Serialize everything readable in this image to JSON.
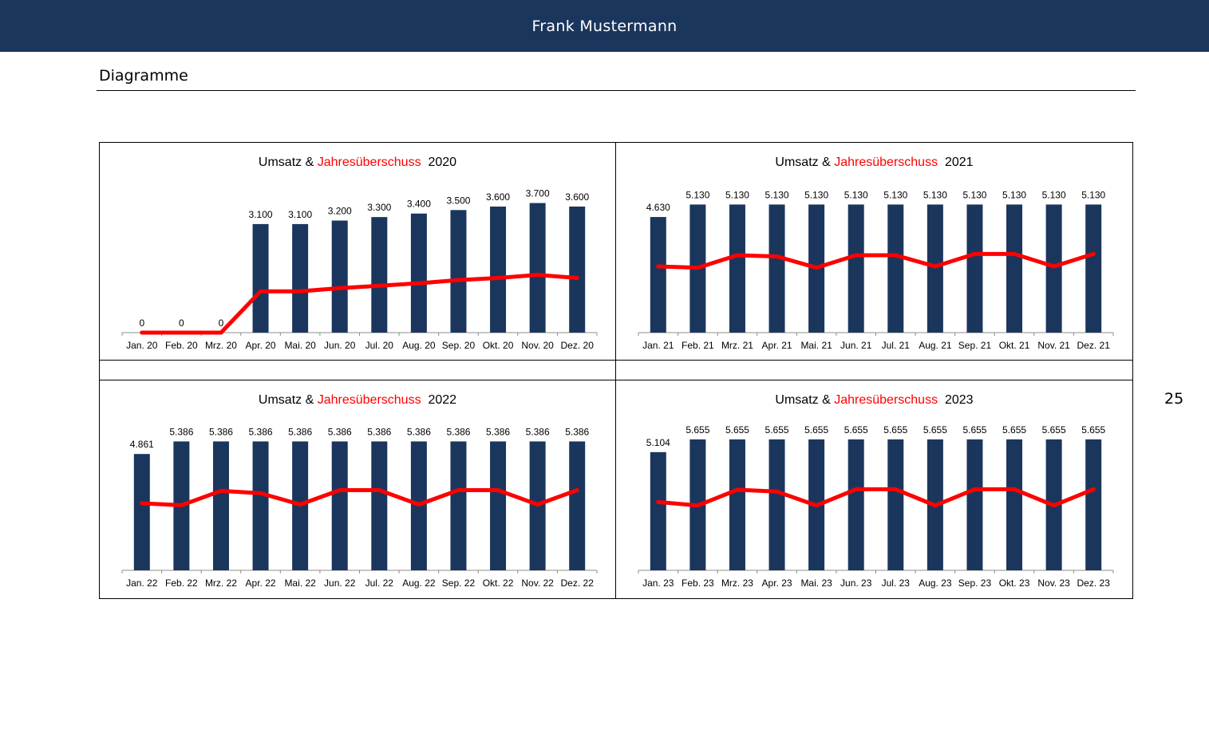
{
  "header": {
    "title": "Frank Mustermann"
  },
  "section": {
    "title": "Diagramme"
  },
  "page_number": "25",
  "colors": {
    "header_bg": "#1b365d",
    "bar": "#1b365d",
    "line": "#ff0000"
  },
  "chart_data": [
    {
      "type": "bar",
      "title_parts": {
        "umsatz": "Umsatz",
        "amp": "&",
        "jahres": "Jahresüberschuss",
        "year": "2020"
      },
      "categories": [
        "Jan. 20",
        "Feb. 20",
        "Mrz. 20",
        "Apr. 20",
        "Mai. 20",
        "Jun. 20",
        "Jul. 20",
        "Aug. 20",
        "Sep. 20",
        "Okt. 20",
        "Nov. 20",
        "Dez. 20"
      ],
      "series": [
        {
          "name": "Umsatz",
          "type": "bar",
          "values": [
            0,
            0,
            0,
            3100,
            3100,
            3200,
            3300,
            3400,
            3500,
            3600,
            3700,
            3600
          ],
          "labels": [
            "0",
            "0",
            "0",
            "3.100",
            "3.100",
            "3.200",
            "3.300",
            "3.400",
            "3.500",
            "3.600",
            "3.700",
            "3.600"
          ]
        },
        {
          "name": "Jahresüberschuss",
          "type": "line",
          "values": [
            0,
            0,
            0,
            1180,
            1180,
            1270,
            1340,
            1410,
            1500,
            1560,
            1650,
            1560
          ]
        }
      ],
      "ylim": [
        0,
        4100
      ]
    },
    {
      "type": "bar",
      "title_parts": {
        "umsatz": "Umsatz",
        "amp": "&",
        "jahres": "Jahresüberschuss",
        "year": "2021"
      },
      "categories": [
        "Jan. 21",
        "Feb. 21",
        "Mrz. 21",
        "Apr. 21",
        "Mai. 21",
        "Jun. 21",
        "Jul. 21",
        "Aug. 21",
        "Sep. 21",
        "Okt. 21",
        "Nov. 21",
        "Dez. 21"
      ],
      "series": [
        {
          "name": "Umsatz",
          "type": "bar",
          "values": [
            4630,
            5130,
            5130,
            5130,
            5130,
            5130,
            5130,
            5130,
            5130,
            5130,
            5130,
            5130
          ],
          "labels": [
            "4.630",
            "5.130",
            "5.130",
            "5.130",
            "5.130",
            "5.130",
            "5.130",
            "5.130",
            "5.130",
            "5.130",
            "5.130",
            "5.130"
          ]
        },
        {
          "name": "Jahresüberschuss",
          "type": "line",
          "values": [
            2650,
            2600,
            3100,
            3050,
            2600,
            3100,
            3100,
            2650,
            3150,
            3150,
            2650,
            3150
          ]
        }
      ],
      "ylim": [
        0,
        5750
      ]
    },
    {
      "type": "bar",
      "title_parts": {
        "umsatz": "Umsatz",
        "amp": "&",
        "jahres": "Jahresüberschuss",
        "year": "2022"
      },
      "categories": [
        "Jan. 22",
        "Feb. 22",
        "Mrz. 22",
        "Apr. 22",
        "Mai. 22",
        "Jun. 22",
        "Jul. 22",
        "Aug. 22",
        "Sep. 22",
        "Okt. 22",
        "Nov. 22",
        "Dez. 22"
      ],
      "series": [
        {
          "name": "Umsatz",
          "type": "bar",
          "values": [
            4861,
            5386,
            5386,
            5386,
            5386,
            5386,
            5386,
            5386,
            5386,
            5386,
            5386,
            5386
          ],
          "labels": [
            "4.861",
            "5.386",
            "5.386",
            "5.386",
            "5.386",
            "5.386",
            "5.386",
            "5.386",
            "5.386",
            "5.386",
            "5.386",
            "5.386"
          ]
        },
        {
          "name": "Jahresüberschuss",
          "type": "line",
          "values": [
            2800,
            2720,
            3320,
            3220,
            2750,
            3350,
            3350,
            2750,
            3350,
            3350,
            2750,
            3350
          ]
        }
      ],
      "ylim": [
        0,
        6000
      ]
    },
    {
      "type": "bar",
      "title_parts": {
        "umsatz": "Umsatz",
        "amp": "&",
        "jahres": "Jahresüberschuss",
        "year": "2023"
      },
      "categories": [
        "Jan. 23",
        "Feb. 23",
        "Mrz. 23",
        "Apr. 23",
        "Mai. 23",
        "Jun. 23",
        "Jul. 23",
        "Aug. 23",
        "Sep. 23",
        "Okt. 23",
        "Nov. 23",
        "Dez. 23"
      ],
      "series": [
        {
          "name": "Umsatz",
          "type": "bar",
          "values": [
            5104,
            5655,
            5655,
            5655,
            5655,
            5655,
            5655,
            5655,
            5655,
            5655,
            5655,
            5655
          ],
          "labels": [
            "5.104",
            "5.655",
            "5.655",
            "5.655",
            "5.655",
            "5.655",
            "5.655",
            "5.655",
            "5.655",
            "5.655",
            "5.655",
            "5.655"
          ]
        },
        {
          "name": "Jahresüberschuss",
          "type": "line",
          "values": [
            2950,
            2800,
            3480,
            3400,
            2800,
            3500,
            3500,
            2800,
            3500,
            3500,
            2800,
            3500
          ]
        }
      ],
      "ylim": [
        0,
        6200
      ]
    }
  ]
}
